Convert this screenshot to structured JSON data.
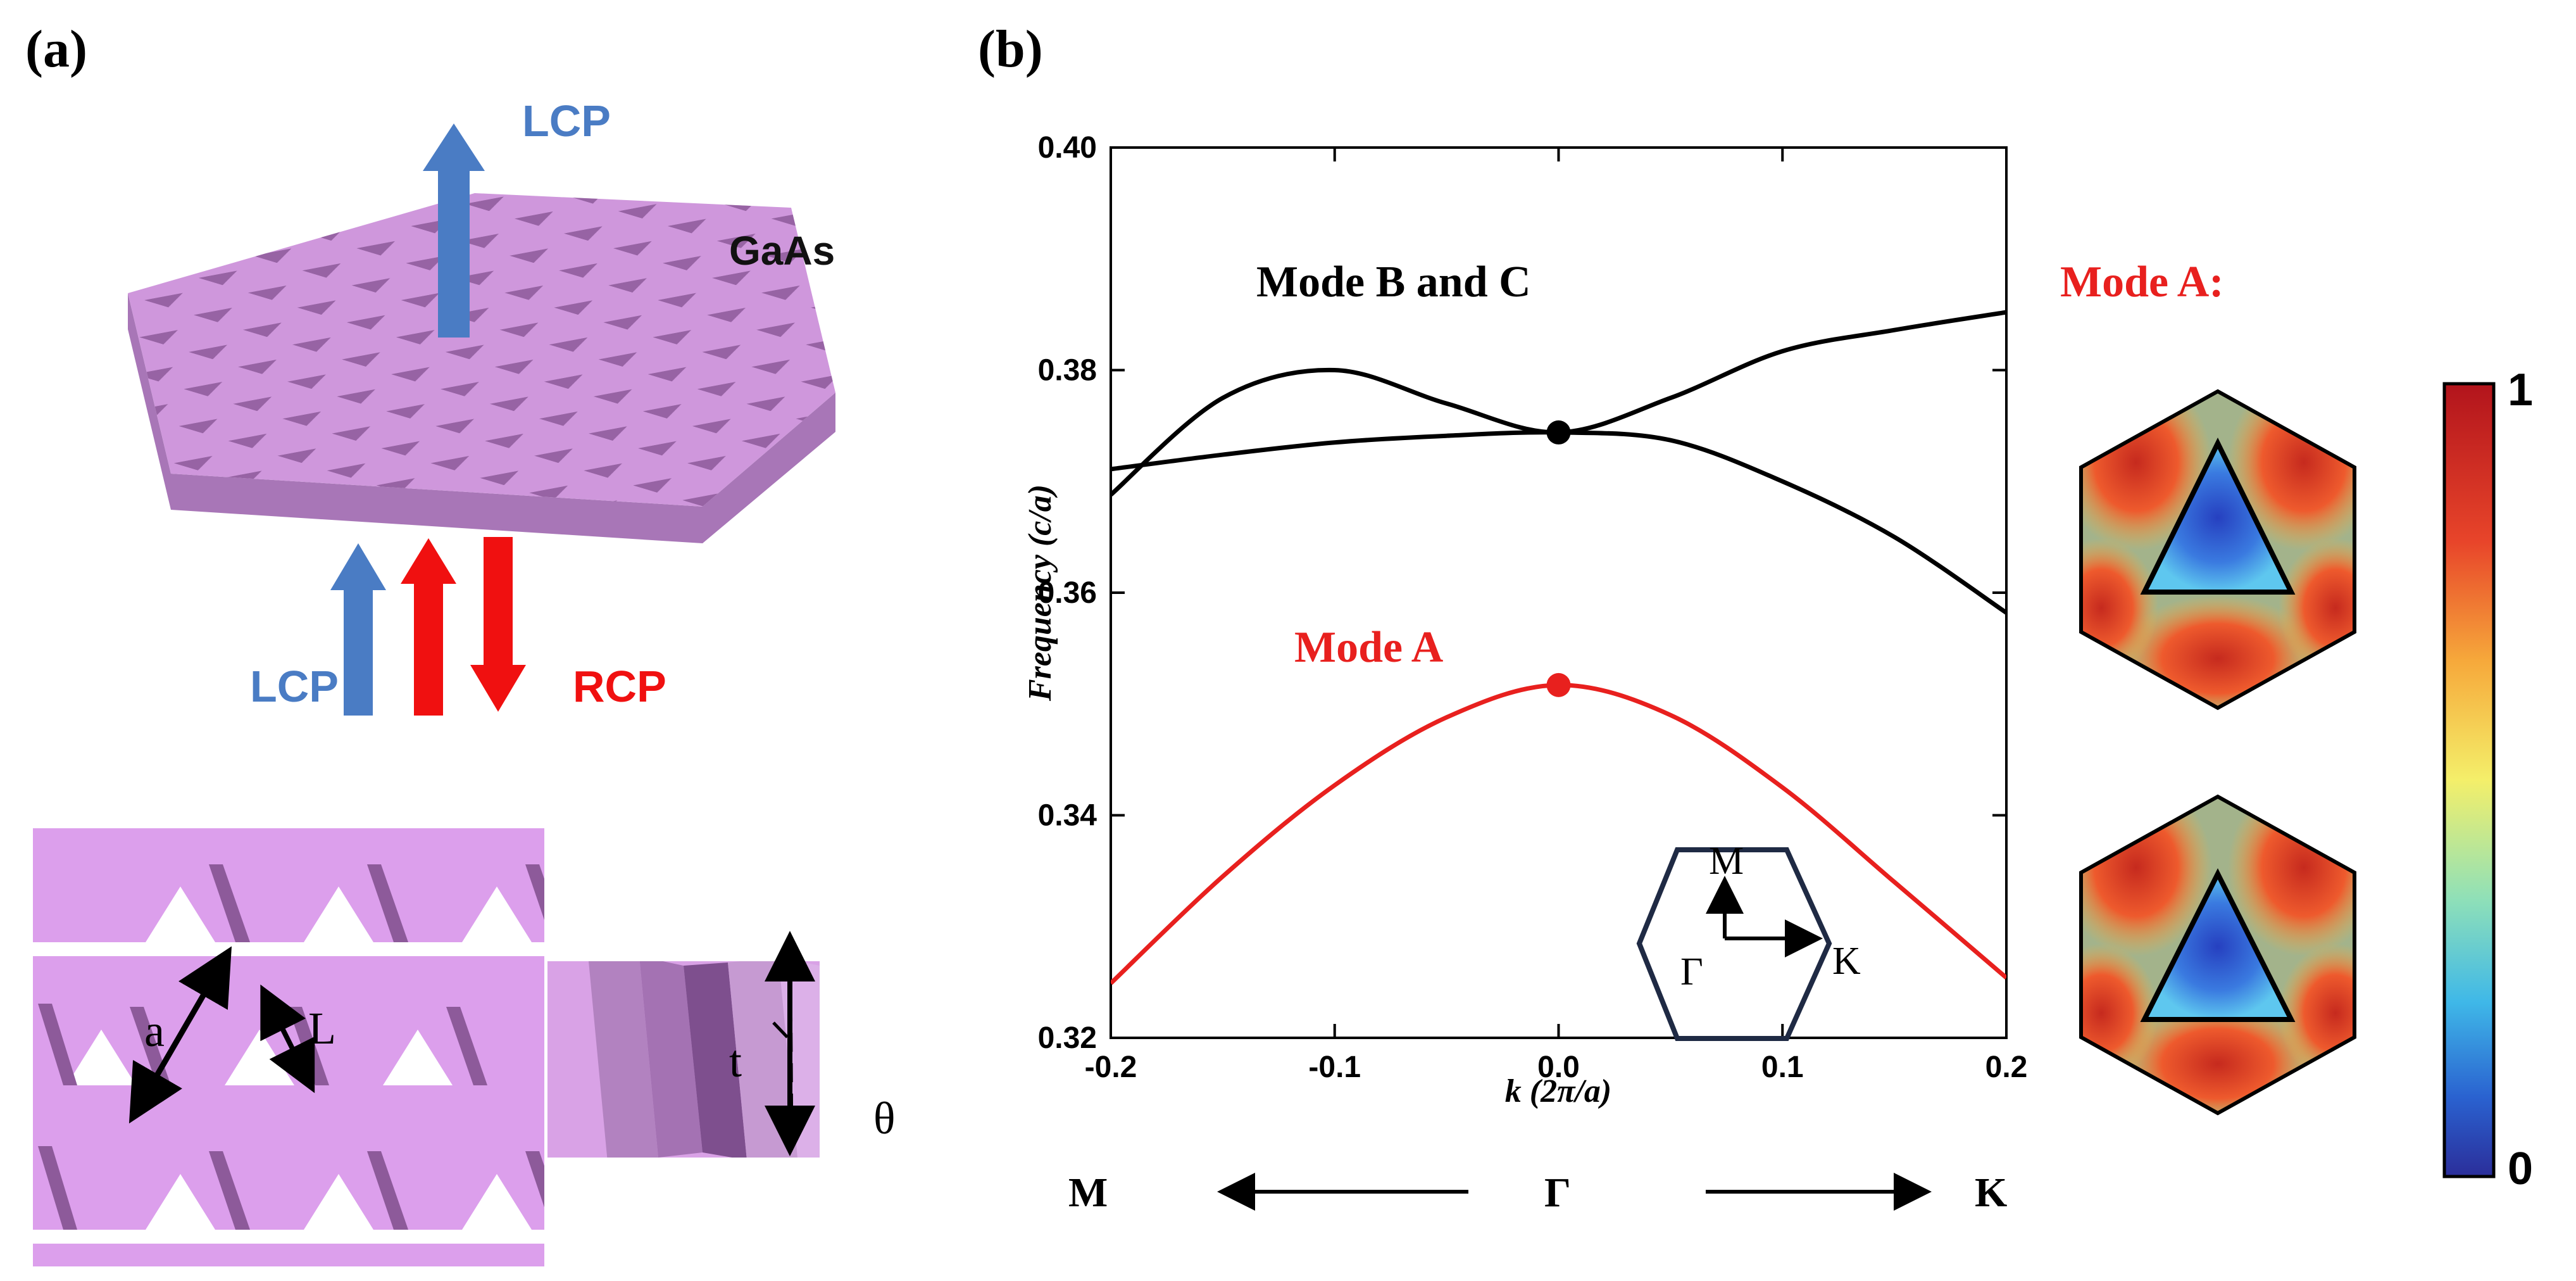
{
  "panel_a": {
    "label": "(a)",
    "material_label": "GaAs",
    "lcp_top_label": "LCP",
    "lcp_bottom_label": "LCP",
    "rcp_label": "RCP",
    "lattice_label": "a",
    "side_label": "L",
    "thickness_label": "t",
    "angle_label": "θ"
  },
  "panel_b": {
    "label": "(b)",
    "mode_bc_label": "Mode B and C",
    "mode_a_curve_label": "Mode A",
    "mode_a_field_label": "Mode A:",
    "bz_labels": {
      "M": "M",
      "Gamma": "Γ",
      "K": "K"
    },
    "path_labels": {
      "left": "M",
      "center": "Γ",
      "right": "K"
    },
    "colorbar": {
      "max_label": "1",
      "min_label": "0"
    }
  },
  "colors": {
    "slab_top": "#cf97dc",
    "slab_side": "#a876b7",
    "lcp_arrow": "#4a7cc4",
    "rcp_arrow": "#f01010",
    "mode_a": "#e8201e",
    "curve_black": "#000000"
  },
  "chart_data": {
    "type": "line",
    "title": "",
    "xlabel": "k (2π/a)",
    "ylabel": "Frequency (c/a)",
    "xlim": [
      -0.2,
      0.2
    ],
    "ylim": [
      0.32,
      0.4
    ],
    "xticks": [
      -0.2,
      -0.1,
      0.0,
      0.1,
      0.2
    ],
    "xtick_labels": [
      "-0.2",
      "-0.1",
      "0.0",
      "0.1",
      "0.2"
    ],
    "yticks": [
      0.32,
      0.34,
      0.36,
      0.38,
      0.4
    ],
    "ytick_labels": [
      "0.32",
      "0.34",
      "0.36",
      "0.38",
      "0.40"
    ],
    "series": [
      {
        "name": "Mode A",
        "color": "#e8201e",
        "x": [
          -0.2,
          -0.15,
          -0.1,
          -0.05,
          0.0,
          0.05,
          0.1,
          0.15,
          0.2
        ],
        "y": [
          0.3249,
          0.3345,
          0.3427,
          0.3488,
          0.3517,
          0.349,
          0.3425,
          0.334,
          0.3254
        ]
      },
      {
        "name": "Mode B",
        "color": "#000000",
        "x": [
          -0.2,
          -0.15,
          -0.1,
          -0.05,
          0.0,
          0.05,
          0.1,
          0.15,
          0.2
        ],
        "y": [
          0.3688,
          0.3775,
          0.38,
          0.377,
          0.3744,
          0.3775,
          0.3817,
          0.3836,
          0.3852
        ]
      },
      {
        "name": "Mode C",
        "color": "#000000",
        "x": [
          -0.2,
          -0.15,
          -0.1,
          -0.05,
          0.0,
          0.05,
          0.1,
          0.15,
          0.2
        ],
        "y": [
          0.3711,
          0.3724,
          0.3735,
          0.3741,
          0.3744,
          0.3737,
          0.37,
          0.365,
          0.3582
        ]
      }
    ],
    "markers": [
      {
        "name": "Mode A at Gamma",
        "x": 0.0,
        "y": 0.3517,
        "color": "#e8201e"
      },
      {
        "name": "Mode B and C degeneracy at Gamma",
        "x": 0.0,
        "y": 0.3744,
        "color": "#000000"
      }
    ]
  }
}
